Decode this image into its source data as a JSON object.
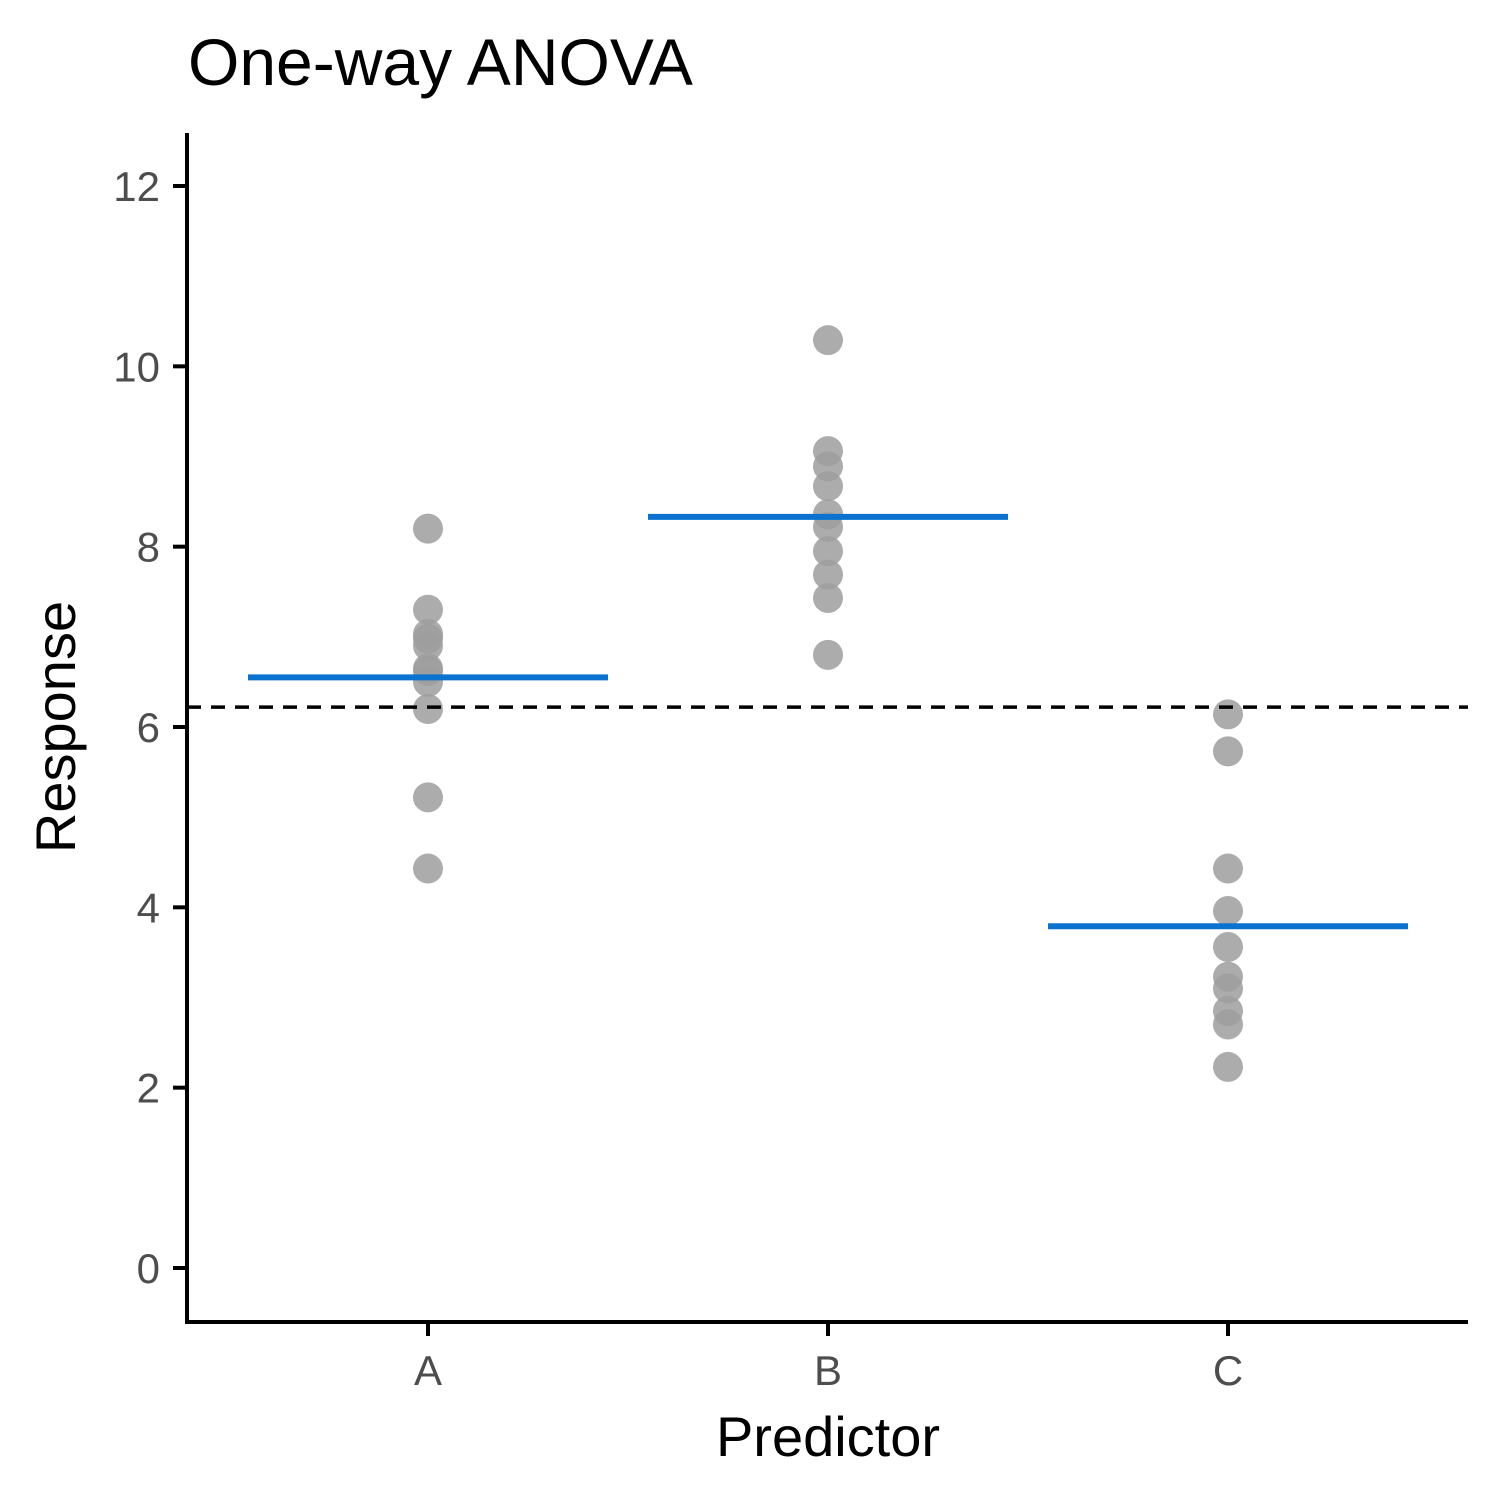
{
  "chart_data": {
    "type": "scatter",
    "title": "One-way ANOVA",
    "xlabel": "Predictor",
    "ylabel": "Response",
    "categories": [
      "A",
      "B",
      "C"
    ],
    "ylim": [
      -0.6,
      12.6
    ],
    "yticks": [
      0,
      2,
      4,
      6,
      8,
      10,
      12
    ],
    "grid": false,
    "legend": "none",
    "overall_mean": 6.22,
    "group_means": [
      {
        "category": "A",
        "mean": 6.55
      },
      {
        "category": "B",
        "mean": 8.33
      },
      {
        "category": "C",
        "mean": 3.79
      }
    ],
    "points": {
      "A": [
        8.2,
        7.3,
        7.03,
        6.98,
        6.9,
        6.65,
        6.62,
        6.5,
        6.2,
        5.22,
        4.43
      ],
      "B": [
        10.29,
        9.06,
        8.89,
        8.67,
        8.36,
        8.22,
        7.95,
        7.69,
        7.43,
        6.8
      ],
      "C": [
        6.14,
        5.73,
        4.43,
        3.96,
        3.56,
        3.23,
        3.1,
        2.85,
        2.7,
        2.23
      ]
    },
    "colors": {
      "points": "#9e9e9e",
      "group_mean_line": "#0b72d0",
      "overall_mean_line": "#000000",
      "axis": "#000000",
      "tick_label": "#4d4d4d"
    }
  }
}
